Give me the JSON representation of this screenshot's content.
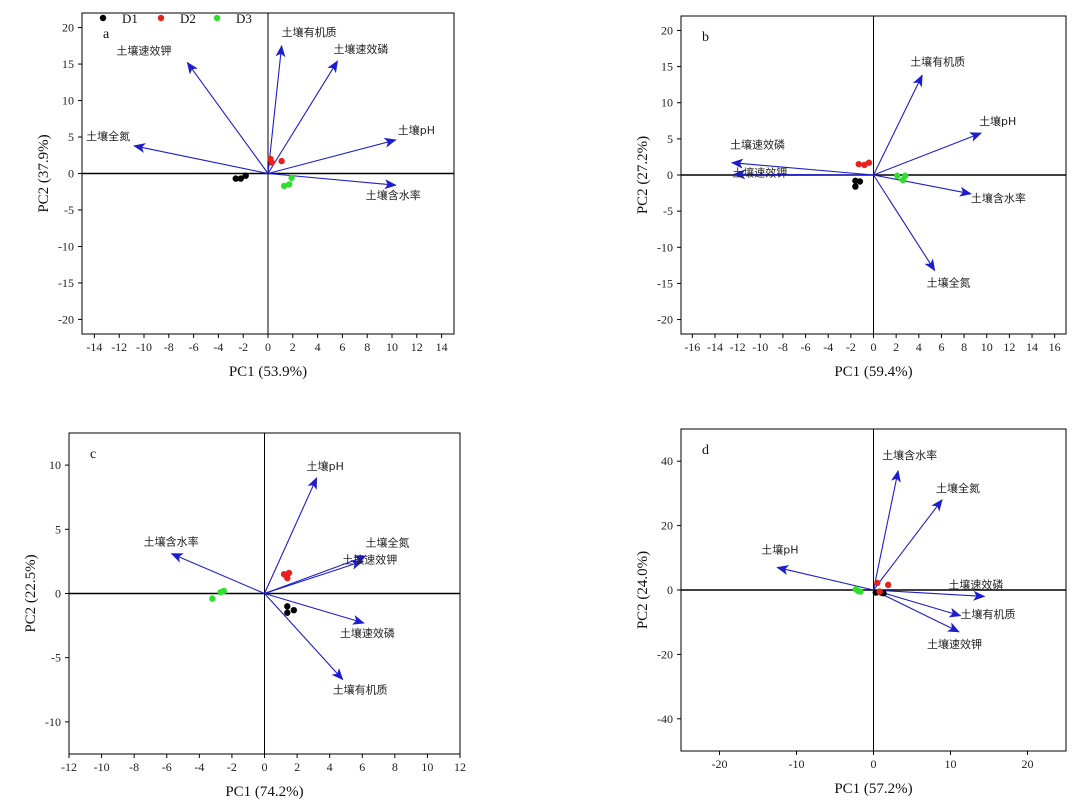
{
  "legend": [
    {
      "name": "D1",
      "color": "#000000"
    },
    {
      "name": "D2",
      "color": "#e8211d"
    },
    {
      "name": "D3",
      "color": "#2ee02a"
    }
  ],
  "colors": {
    "arrow": "#1d1dcf",
    "axis": "#000000"
  },
  "chart_data": [
    {
      "type": "scatter",
      "panel": "a",
      "xlabel": "PC1 (53.9%)",
      "ylabel": "PC2 (37.9%)",
      "xlim": [
        -15,
        15
      ],
      "ylim": [
        -22,
        22
      ],
      "xticks": [
        -14,
        -12,
        -10,
        -8,
        -6,
        -4,
        -2,
        0,
        2,
        4,
        6,
        8,
        10,
        12,
        14
      ],
      "yticks": [
        -20,
        -15,
        -10,
        -5,
        0,
        5,
        10,
        15,
        20
      ],
      "grid": false,
      "legend_placement": "top-left",
      "vectors": [
        {
          "name": "土壤有机质",
          "x": 1.1,
          "y": 17.5
        },
        {
          "name": "土壤速效磷",
          "x": 5.6,
          "y": 15.4
        },
        {
          "name": "土壤速效钾",
          "x": -6.5,
          "y": 15.2
        },
        {
          "name": "土壤pH",
          "x": 10.3,
          "y": 4.6
        },
        {
          "name": "土壤全氮",
          "x": -10.8,
          "y": 3.8
        },
        {
          "name": "土壤含水率",
          "x": 10.3,
          "y": -1.6
        }
      ],
      "series": [
        {
          "name": "D1",
          "points": [
            [
              -2.6,
              -0.7
            ],
            [
              -2.2,
              -0.7
            ],
            [
              -1.8,
              -0.3
            ]
          ]
        },
        {
          "name": "D2",
          "points": [
            [
              0.2,
              2.0
            ],
            [
              0.3,
              1.5
            ],
            [
              1.1,
              1.7
            ]
          ]
        },
        {
          "name": "D3",
          "points": [
            [
              1.3,
              -1.7
            ],
            [
              1.7,
              -1.5
            ],
            [
              1.9,
              -0.6
            ]
          ]
        }
      ]
    },
    {
      "type": "scatter",
      "panel": "b",
      "xlabel": "PC1 (59.4%)",
      "ylabel": "PC2 (27.2%)",
      "xlim": [
        -17,
        17
      ],
      "ylim": [
        -22,
        22
      ],
      "xticks": [
        -16,
        -14,
        -12,
        -10,
        -8,
        -6,
        -4,
        -2,
        0,
        2,
        4,
        6,
        8,
        10,
        12,
        14,
        16
      ],
      "yticks": [
        -20,
        -15,
        -10,
        -5,
        0,
        5,
        10,
        15,
        20
      ],
      "grid": false,
      "vectors": [
        {
          "name": "土壤有机质",
          "x": 4.3,
          "y": 13.8
        },
        {
          "name": "土壤pH",
          "x": 9.5,
          "y": 5.8
        },
        {
          "name": "土壤速效磷",
          "x": -12.5,
          "y": 1.7
        },
        {
          "name": "土壤速效钾",
          "x": -12.3,
          "y": 0.1
        },
        {
          "name": "土壤含水率",
          "x": 8.6,
          "y": -2.6
        },
        {
          "name": "土壤全氮",
          "x": 5.4,
          "y": -13.2
        }
      ],
      "series": [
        {
          "name": "D1",
          "points": [
            [
              -1.6,
              -0.8
            ],
            [
              -1.6,
              -1.6
            ],
            [
              -1.2,
              -0.9
            ]
          ]
        },
        {
          "name": "D2",
          "points": [
            [
              -1.3,
              1.5
            ],
            [
              -0.8,
              1.4
            ],
            [
              -0.4,
              1.7
            ]
          ]
        },
        {
          "name": "D3",
          "points": [
            [
              2.1,
              -0.1
            ],
            [
              2.8,
              -0.1
            ],
            [
              2.6,
              -0.7
            ]
          ]
        }
      ]
    },
    {
      "type": "scatter",
      "panel": "c",
      "xlabel": "PC1 (74.2%)",
      "ylabel": "PC2 (22.5%)",
      "xlim": [
        -12,
        12
      ],
      "ylim": [
        -12.5,
        12.5
      ],
      "xticks": [
        -12,
        -10,
        -8,
        -6,
        -4,
        -2,
        0,
        2,
        4,
        6,
        8,
        10,
        12
      ],
      "yticks": [
        -10,
        -5,
        0,
        5,
        10
      ],
      "grid": false,
      "vectors": [
        {
          "name": "土壤pH",
          "x": 3.2,
          "y": 9.0
        },
        {
          "name": "土壤全氮",
          "x": 6.2,
          "y": 2.9
        },
        {
          "name": "土壤速效钾",
          "x": 6.0,
          "y": 2.5
        },
        {
          "name": "土壤含水率",
          "x": -5.7,
          "y": 3.1
        },
        {
          "name": "土壤速效磷",
          "x": 6.1,
          "y": -2.3
        },
        {
          "name": "土壤有机质",
          "x": 4.8,
          "y": -6.7
        }
      ],
      "series": [
        {
          "name": "D1",
          "points": [
            [
              1.4,
              -1.0
            ],
            [
              1.8,
              -1.3
            ],
            [
              1.4,
              -1.5
            ]
          ]
        },
        {
          "name": "D2",
          "points": [
            [
              1.2,
              1.5
            ],
            [
              1.5,
              1.6
            ],
            [
              1.4,
              1.2
            ]
          ]
        },
        {
          "name": "D3",
          "points": [
            [
              -3.2,
              -0.4
            ],
            [
              -2.7,
              0.1
            ],
            [
              -2.5,
              0.2
            ]
          ]
        }
      ]
    },
    {
      "type": "scatter",
      "panel": "d",
      "xlabel": "PC1 (57.2%)",
      "ylabel": "PC2 (24.0%)",
      "xlim": [
        -25,
        25
      ],
      "ylim": [
        -50,
        50
      ],
      "xticks": [
        -20,
        -10,
        0,
        10,
        20
      ],
      "yticks": [
        -40,
        -20,
        0,
        20,
        40
      ],
      "grid": false,
      "vectors": [
        {
          "name": "土壤含水率",
          "x": 3.2,
          "y": 37.0
        },
        {
          "name": "土壤全氮",
          "x": 8.9,
          "y": 28.0
        },
        {
          "name": "土壤pH",
          "x": -12.5,
          "y": 7.0
        },
        {
          "name": "土壤速效磷",
          "x": 14.4,
          "y": -2.0
        },
        {
          "name": "土壤有机质",
          "x": 11.3,
          "y": -8.0
        },
        {
          "name": "土壤速效钾",
          "x": 11.1,
          "y": -13.0
        }
      ],
      "series": [
        {
          "name": "D1",
          "points": [
            [
              0.3,
              -0.8
            ],
            [
              1.0,
              -0.8
            ],
            [
              1.3,
              -1.0
            ]
          ]
        },
        {
          "name": "D2",
          "points": [
            [
              0.5,
              2.2
            ],
            [
              1.9,
              1.6
            ],
            [
              0.8,
              -0.5
            ]
          ]
        },
        {
          "name": "D3",
          "points": [
            [
              -2.3,
              0.2
            ],
            [
              -2.0,
              -0.3
            ],
            [
              -1.7,
              -0.5
            ]
          ]
        }
      ]
    }
  ]
}
